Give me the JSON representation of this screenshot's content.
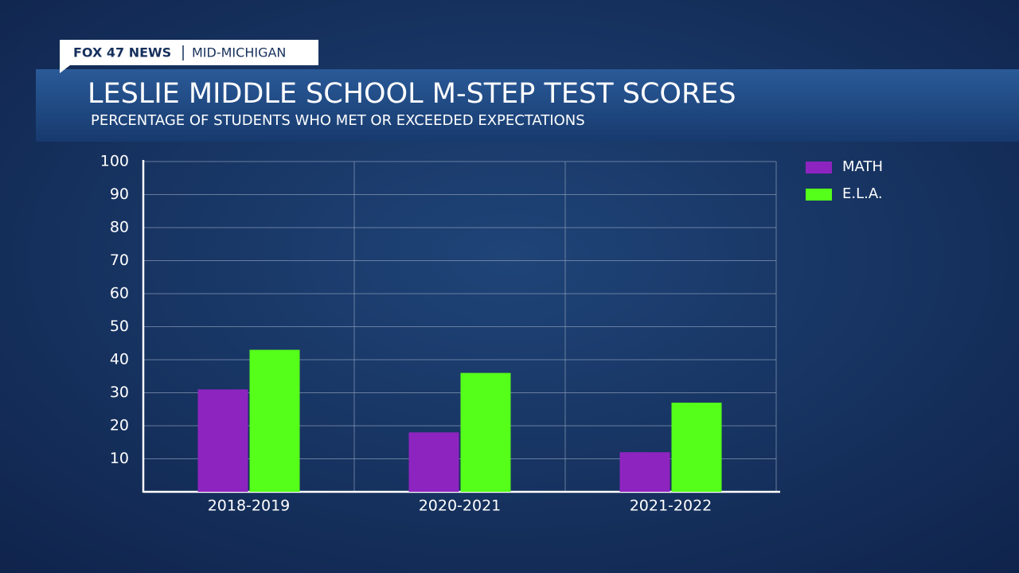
{
  "header": {
    "brand": "FOX 47 NEWS",
    "region": "MID-MICHIGAN"
  },
  "chart_data": {
    "type": "bar",
    "title": "LESLIE MIDDLE SCHOOL M-STEP TEST SCORES",
    "subtitle": "PERCENTAGE OF STUDENTS WHO MET OR EXCEEDED EXPECTATIONS",
    "categories": [
      "2018-2019",
      "2020-2021",
      "2021-2022"
    ],
    "series": [
      {
        "name": "MATH",
        "color": "#8e24c0",
        "values": [
          31,
          18,
          12
        ]
      },
      {
        "name": "E.L.A.",
        "color": "#55ff1a",
        "values": [
          43,
          36,
          27
        ]
      }
    ],
    "ylim": [
      0,
      100
    ],
    "yticks": [
      10,
      20,
      30,
      40,
      50,
      60,
      70,
      80,
      90,
      100
    ],
    "grid": true,
    "legend": "top-right"
  }
}
